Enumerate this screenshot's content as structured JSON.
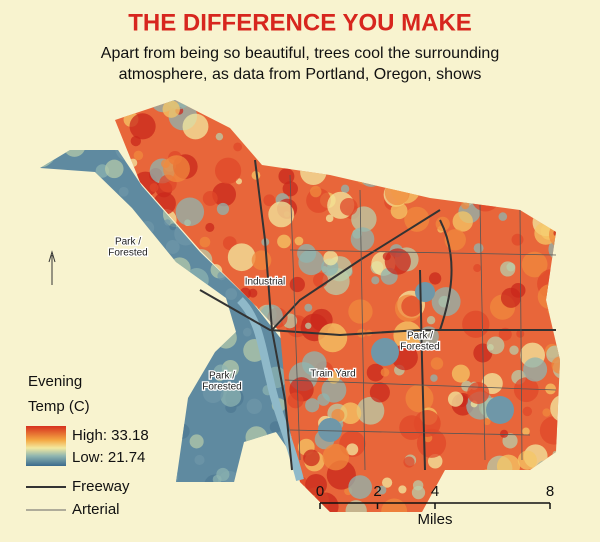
{
  "header": {
    "title": "THE DIFFERENCE YOU MAKE",
    "subtitle_lines": [
      "Apart from being so beautiful, trees cool the surrounding",
      "atmosphere, as data from Portland, Oregon, shows"
    ]
  },
  "map_labels": [
    [
      "Park /",
      "Forested"
    ],
    [
      "Industrial"
    ],
    [
      "Park /",
      "Forested"
    ],
    [
      "Park /",
      "Forested"
    ],
    [
      "Train Yard"
    ]
  ],
  "legend": {
    "title_lines": [
      "Evening",
      "Temp (C)"
    ],
    "high": "High: 33.18",
    "low": "Low: 21.74",
    "freeway": "Freeway",
    "arterial": "Arterial"
  },
  "scale": {
    "ticks": [
      0,
      2,
      4,
      8
    ],
    "unit": "Miles"
  }
}
